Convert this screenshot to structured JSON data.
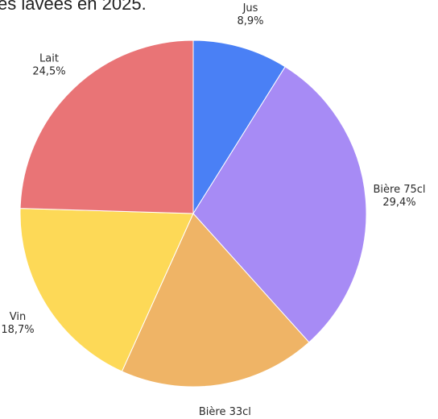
{
  "chart_data": {
    "type": "pie",
    "title": "es lavées en 2025.",
    "slices": [
      {
        "label": "Jus",
        "value_text": "8,9%",
        "value": 8.9,
        "color": "#4a80f5"
      },
      {
        "label": "Bière 75cl",
        "value_text": "29,4%",
        "value": 29.4,
        "color": "#a78bf5"
      },
      {
        "label": "Bière 33cl",
        "value_text": "18,4%",
        "value": 18.4,
        "color": "#efb466"
      },
      {
        "label": "Vin",
        "value_text": "18,7%",
        "value": 18.7,
        "color": "#fdd957"
      },
      {
        "label": "Lait",
        "value_text": "24,5%",
        "value": 24.5,
        "color": "#e97476"
      }
    ],
    "start_angle_deg": 0,
    "direction": "clockwise",
    "legend": "none"
  }
}
